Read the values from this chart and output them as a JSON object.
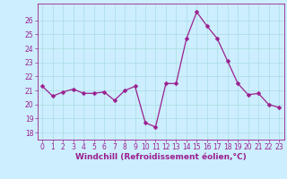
{
  "x": [
    0,
    1,
    2,
    3,
    4,
    5,
    6,
    7,
    8,
    9,
    10,
    11,
    12,
    13,
    14,
    15,
    16,
    17,
    18,
    19,
    20,
    21,
    22,
    23
  ],
  "y": [
    21.3,
    20.6,
    20.9,
    21.1,
    20.8,
    20.8,
    20.9,
    20.3,
    21.0,
    21.3,
    18.7,
    18.4,
    21.5,
    21.5,
    24.7,
    26.6,
    25.6,
    24.7,
    23.1,
    21.5,
    20.7,
    20.8,
    20.0,
    19.8
  ],
  "line_color": "#9b1f8e",
  "marker": "D",
  "marker_size": 2.5,
  "bg_color": "#cceeff",
  "grid_color": "#aadddd",
  "xlabel": "Windchill (Refroidissement éolien,°C)",
  "xlim": [
    -0.5,
    23.5
  ],
  "ylim": [
    17.5,
    27.2
  ],
  "yticks": [
    18,
    19,
    20,
    21,
    22,
    23,
    24,
    25,
    26
  ],
  "xticks": [
    0,
    1,
    2,
    3,
    4,
    5,
    6,
    7,
    8,
    9,
    10,
    11,
    12,
    13,
    14,
    15,
    16,
    17,
    18,
    19,
    20,
    21,
    22,
    23
  ],
  "tick_color": "#9b1f8e",
  "tick_fontsize": 5.5,
  "xlabel_fontsize": 6.5
}
